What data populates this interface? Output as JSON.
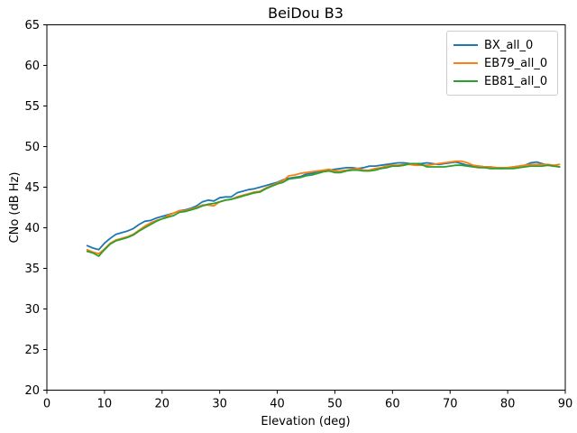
{
  "figure": {
    "title": "BeiDou B3",
    "xlabel": "Elevation (deg)",
    "ylabel": "CNo (dB Hz)"
  },
  "chart_data": {
    "type": "line",
    "title": "BeiDou B3",
    "xlabel": "Elevation (deg)",
    "ylabel": "CNo (dB Hz)",
    "xlim": [
      0,
      90
    ],
    "ylim": [
      20,
      65
    ],
    "xticks": [
      0,
      10,
      20,
      30,
      40,
      50,
      60,
      70,
      80,
      90
    ],
    "yticks": [
      20,
      25,
      30,
      35,
      40,
      45,
      50,
      55,
      60,
      65
    ],
    "grid": false,
    "legend_position": "upper right",
    "x": [
      7,
      8,
      9,
      10,
      11,
      12,
      13,
      14,
      15,
      16,
      17,
      18,
      19,
      20,
      21,
      22,
      23,
      24,
      25,
      26,
      27,
      28,
      29,
      30,
      31,
      32,
      33,
      34,
      35,
      36,
      37,
      38,
      39,
      40,
      41,
      42,
      43,
      44,
      45,
      46,
      47,
      48,
      49,
      50,
      51,
      52,
      53,
      54,
      55,
      56,
      57,
      58,
      59,
      60,
      61,
      62,
      63,
      64,
      65,
      66,
      67,
      68,
      69,
      70,
      71,
      72,
      73,
      74,
      75,
      76,
      77,
      78,
      79,
      80,
      81,
      82,
      83,
      84,
      85,
      86,
      87,
      88,
      89
    ],
    "series": [
      {
        "name": "BX_all_0",
        "color": "#1f77b4",
        "values": [
          37.8,
          37.5,
          37.3,
          38.1,
          38.7,
          39.2,
          39.4,
          39.6,
          39.9,
          40.4,
          40.8,
          40.9,
          41.2,
          41.4,
          41.6,
          41.8,
          42.1,
          42.2,
          42.4,
          42.7,
          43.2,
          43.4,
          43.3,
          43.7,
          43.8,
          43.8,
          44.3,
          44.5,
          44.7,
          44.8,
          45.0,
          45.2,
          45.4,
          45.6,
          45.9,
          46.1,
          46.2,
          46.3,
          46.6,
          46.7,
          46.9,
          47.0,
          47.1,
          47.2,
          47.3,
          47.4,
          47.4,
          47.3,
          47.4,
          47.6,
          47.6,
          47.7,
          47.8,
          47.9,
          48.0,
          48.0,
          47.9,
          47.9,
          47.9,
          48.0,
          47.9,
          47.8,
          47.9,
          48.0,
          48.1,
          47.9,
          47.7,
          47.6,
          47.6,
          47.5,
          47.5,
          47.4,
          47.3,
          47.4,
          47.5,
          47.6,
          47.7,
          48.0,
          48.1,
          47.9,
          47.7,
          47.6,
          47.5
        ]
      },
      {
        "name": "EB79_all_0",
        "color": "#ff7f0e",
        "values": [
          37.3,
          37.0,
          36.8,
          37.4,
          38.1,
          38.5,
          38.7,
          38.9,
          39.2,
          39.7,
          40.2,
          40.6,
          40.9,
          41.1,
          41.5,
          41.8,
          42.1,
          42.1,
          42.3,
          42.5,
          42.8,
          42.8,
          42.7,
          43.2,
          43.4,
          43.5,
          43.8,
          44.0,
          44.2,
          44.4,
          44.5,
          44.9,
          45.2,
          45.5,
          45.8,
          46.4,
          46.5,
          46.7,
          46.8,
          46.9,
          47.0,
          47.1,
          47.2,
          47.0,
          47.0,
          47.1,
          47.2,
          47.3,
          47.1,
          47.1,
          47.3,
          47.4,
          47.6,
          47.7,
          47.7,
          47.8,
          47.8,
          47.7,
          47.7,
          47.7,
          47.8,
          47.9,
          48.0,
          48.1,
          48.2,
          48.2,
          48.0,
          47.7,
          47.6,
          47.5,
          47.5,
          47.4,
          47.4,
          47.4,
          47.5,
          47.6,
          47.7,
          47.8,
          47.8,
          47.8,
          47.8,
          47.7,
          47.8
        ]
      },
      {
        "name": "EB81_all_0",
        "color": "#2ca02c",
        "values": [
          37.1,
          36.9,
          36.5,
          37.3,
          38.0,
          38.4,
          38.6,
          38.8,
          39.1,
          39.6,
          40.0,
          40.4,
          40.8,
          41.1,
          41.3,
          41.5,
          41.9,
          42.0,
          42.2,
          42.4,
          42.7,
          42.9,
          43.0,
          43.2,
          43.4,
          43.5,
          43.7,
          43.9,
          44.1,
          44.3,
          44.4,
          44.8,
          45.1,
          45.4,
          45.6,
          46.0,
          46.1,
          46.2,
          46.4,
          46.5,
          46.7,
          46.9,
          47.0,
          46.8,
          46.8,
          47.0,
          47.1,
          47.1,
          47.0,
          47.0,
          47.1,
          47.3,
          47.4,
          47.6,
          47.6,
          47.7,
          47.9,
          47.9,
          47.8,
          47.5,
          47.5,
          47.5,
          47.5,
          47.6,
          47.7,
          47.7,
          47.6,
          47.5,
          47.4,
          47.4,
          47.3,
          47.3,
          47.3,
          47.3,
          47.3,
          47.4,
          47.5,
          47.6,
          47.6,
          47.6,
          47.7,
          47.6,
          47.5
        ]
      }
    ]
  }
}
